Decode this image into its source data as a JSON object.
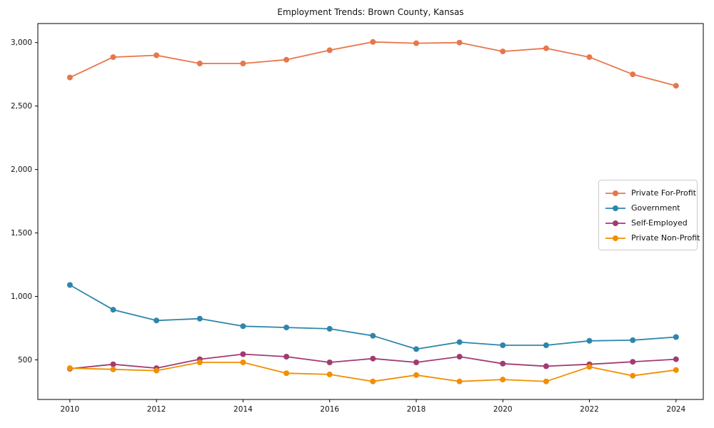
{
  "figure": {
    "title": "Employment Trends: Brown County, Kansas"
  },
  "chart_data": {
    "type": "line",
    "title": "Employment Trends: Brown County, Kansas",
    "xlabel": "",
    "ylabel": "",
    "grid": false,
    "legend_position": "center-right",
    "x": [
      2010,
      2011,
      2012,
      2013,
      2014,
      2015,
      2016,
      2017,
      2018,
      2019,
      2020,
      2021,
      2022,
      2023,
      2024
    ],
    "series": [
      {
        "name": "Private For-Profit",
        "color": "#E8764B",
        "values": [
          2725,
          2885,
          2900,
          2835,
          2835,
          2865,
          2940,
          3005,
          2995,
          3000,
          2930,
          2955,
          2885,
          2750,
          2660
        ]
      },
      {
        "name": "Government",
        "color": "#2E86AB",
        "values": [
          1090,
          895,
          810,
          825,
          765,
          755,
          745,
          690,
          585,
          640,
          615,
          615,
          650,
          655,
          680
        ]
      },
      {
        "name": "Self-Employed",
        "color": "#A23B72",
        "values": [
          430,
          465,
          435,
          505,
          545,
          525,
          480,
          510,
          480,
          525,
          470,
          450,
          465,
          485,
          505
        ]
      },
      {
        "name": "Private Non-Profit",
        "color": "#F18F01",
        "values": [
          435,
          425,
          415,
          480,
          480,
          395,
          385,
          330,
          380,
          330,
          345,
          330,
          445,
          375,
          420
        ]
      }
    ],
    "xlim": [
      2009.26,
      2024.63
    ],
    "ylim": [
      188,
      3150
    ],
    "xticks": {
      "values": [
        2010,
        2012,
        2014,
        2016,
        2018,
        2020,
        2022,
        2024
      ],
      "labels": [
        "2010",
        "2012",
        "2014",
        "2016",
        "2018",
        "2020",
        "2022",
        "2024"
      ]
    },
    "yticks": {
      "values": [
        500,
        1000,
        1500,
        2000,
        2500,
        3000
      ],
      "labels": [
        "500",
        "1,000",
        "1,500",
        "2,000",
        "2,500",
        "3,000"
      ]
    }
  }
}
